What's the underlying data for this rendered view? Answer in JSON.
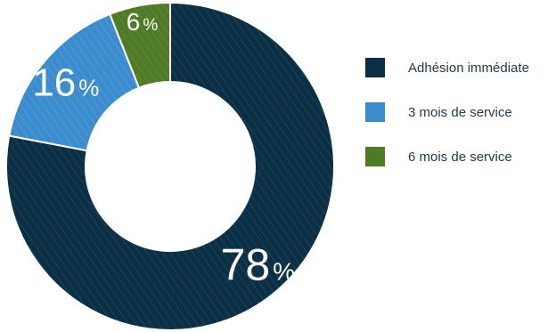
{
  "chart_data": {
    "type": "pie",
    "categories": [
      "Adhésion immédiate",
      "3 mois de service",
      "6 mois de service"
    ],
    "values": [
      78,
      16,
      6
    ],
    "value_labels": [
      "78",
      "16",
      "6"
    ],
    "unit_label": "%",
    "colors": [
      "#0b2f45",
      "#3a8ccf",
      "#4f7a26"
    ],
    "legend": {
      "position": "right",
      "entries": [
        "Adhésion immédiate",
        "3 mois de service",
        "6 mois de service"
      ]
    }
  }
}
